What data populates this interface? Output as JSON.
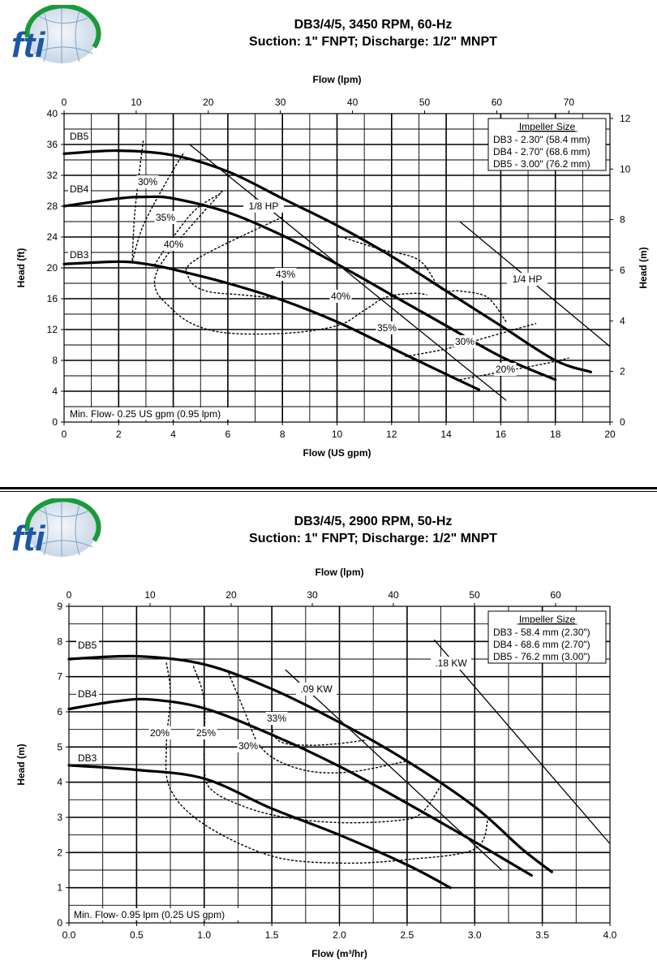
{
  "charts": [
    {
      "logo_text": "fti",
      "title_line1": "DB3/4/5, 3450 RPM, 60-Hz",
      "title_line2": "Suction: 1\" FNPT; Discharge: 1/2\" MNPT",
      "chart_data": {
        "type": "line",
        "xlabel": "Flow (US gpm)",
        "x2label": "Flow (lpm)",
        "ylabel": "Head (ft)",
        "y2label": "Head (m)",
        "xlim": [
          0,
          20
        ],
        "x_ticks": [
          "0",
          "2",
          "4",
          "6",
          "8",
          "10",
          "12",
          "14",
          "16",
          "18",
          "20"
        ],
        "x2lim": [
          0,
          75.7
        ],
        "x2_ticks": [
          "0",
          "10",
          "20",
          "30",
          "40",
          "50",
          "60",
          "70"
        ],
        "ylim": [
          0,
          40
        ],
        "y_ticks": [
          "0",
          "4",
          "8",
          "12",
          "16",
          "20",
          "24",
          "28",
          "32",
          "36",
          "40"
        ],
        "y2lim": [
          0,
          12.19
        ],
        "y2_ticks": [
          "0",
          "2",
          "4",
          "6",
          "8",
          "10",
          "12"
        ],
        "grid": true,
        "legend_position": "top-right",
        "legend_title": "Impeller Size",
        "legend_entries": [
          "DB3 - 2.30\" (58.4 mm)",
          "DB4 - 2.70\" (68.6 mm)",
          "DB5 - 3.00\" (76.2 mm)"
        ],
        "series": [
          {
            "name": "DB5",
            "x": [
              0,
              2,
              4,
              6,
              8,
              10,
              12,
              14,
              16,
              18,
              19.3
            ],
            "y": [
              34.8,
              35.2,
              34.6,
              32.5,
              29.0,
              25.5,
              21.5,
              17.0,
              12.5,
              8.0,
              6.5
            ]
          },
          {
            "name": "DB4",
            "x": [
              0,
              2,
              3,
              4,
              6,
              8,
              10,
              12,
              14,
              16,
              18
            ],
            "y": [
              28.0,
              29.0,
              29.2,
              29.0,
              27.2,
              24.2,
              20.5,
              16.5,
              12.5,
              8.5,
              5.5
            ]
          },
          {
            "name": "DB3",
            "x": [
              0,
              2,
              3,
              4,
              6,
              8,
              10,
              12,
              14,
              15.2
            ],
            "y": [
              20.5,
              20.8,
              20.5,
              19.8,
              18.0,
              15.8,
              13.0,
              9.6,
              6.2,
              4.2
            ]
          }
        ],
        "power_lines": [
          {
            "label": "1/8 HP",
            "x": [
              4.6,
              16.2
            ],
            "y": [
              36.0,
              2.8
            ]
          },
          {
            "label": "1/4 HP",
            "x": [
              14.5,
              20
            ],
            "y": [
              26.0,
              9.8
            ]
          }
        ],
        "efficiency_curves": [
          {
            "label": "30%",
            "x": [
              2.5,
              2.6,
              2.9
            ],
            "y": [
              21.0,
              27.5,
              36.5
            ]
          },
          {
            "label": "35%",
            "x": [
              2.5,
              2.9,
              3.8,
              4.4
            ],
            "y": [
              20.8,
              25.5,
              31.5,
              35.0
            ]
          },
          {
            "label": "40%",
            "x": [
              3.3,
              3.9,
              4.8,
              5.8
            ],
            "y": [
              20.3,
              23.5,
              27.5,
              29.8
            ]
          },
          {
            "label": "43%",
            "x": [
              8.0,
              4.8,
              4.6,
              5.2,
              6.5,
              8.0
            ],
            "y": [
              26.6,
              21.0,
              18.5,
              17.0,
              16.5,
              16.0
            ]
          },
          {
            "label": "40%",
            "x": [
              5.8,
              3.4,
              4.0,
              5.5,
              8.0,
              10.0,
              11.0,
              11.8,
              12.8,
              13.3
            ],
            "y": [
              30.0,
              19.5,
              14.5,
              11.8,
              11.5,
              12.5,
              14.5,
              16.2,
              16.7,
              16.5
            ]
          },
          {
            "label": "35%",
            "x": [
              10.0,
              11.5,
              13.0,
              13.8,
              14.5,
              15.5,
              16.2
            ],
            "y": [
              24.2,
              22.5,
              21.0,
              17.3,
              17.0,
              16.2,
              13.0
            ]
          },
          {
            "label": "30%",
            "x": [
              12.5,
              14.0,
              15.5,
              16.5,
              17.3
            ],
            "y": [
              8.5,
              9.5,
              11.0,
              12.0,
              12.8
            ]
          },
          {
            "label": "20%",
            "x": [
              14.5,
              16.0,
              17.5,
              18.5
            ],
            "y": [
              5.5,
              6.5,
              7.5,
              8.3
            ]
          }
        ],
        "annotations": [
          "Min. Flow- 0.25 US gpm (0.95 lpm)"
        ]
      }
    },
    {
      "logo_text": "fti",
      "title_line1": "DB3/4/5, 2900 RPM, 50-Hz",
      "title_line2": "Suction: 1\" FNPT; Discharge: 1/2\" MNPT",
      "chart_data": {
        "type": "line",
        "xlabel": "Flow (m³/hr)",
        "x2label": "Flow (lpm)",
        "ylabel": "Head (m)",
        "y2label": "",
        "xlim": [
          0,
          4.0
        ],
        "x_ticks": [
          "0.0",
          "0.5",
          "1.0",
          "1.5",
          "2.0",
          "2.5",
          "3.0",
          "3.5",
          "4.0"
        ],
        "x2lim": [
          0,
          66.7
        ],
        "x2_ticks": [
          "0",
          "10",
          "20",
          "30",
          "40",
          "50",
          "60"
        ],
        "ylim": [
          0,
          9
        ],
        "y_ticks": [
          "0",
          "1",
          "2",
          "3",
          "4",
          "5",
          "6",
          "7",
          "8",
          "9"
        ],
        "grid": true,
        "legend_position": "top-right",
        "legend_title": "Impeller Size",
        "legend_entries": [
          "DB3 - 58.4 mm (2.30\")",
          "DB4 - 68.6 mm (2.70\")",
          "DB5 - 76.2 mm (3.00\")"
        ],
        "series": [
          {
            "name": "DB5",
            "x": [
              0,
              0.5,
              1.0,
              1.5,
              2.0,
              2.5,
              3.0,
              3.35,
              3.57
            ],
            "y": [
              7.5,
              7.58,
              7.35,
              6.65,
              5.7,
              4.6,
              3.3,
              2.1,
              1.45
            ]
          },
          {
            "name": "DB4",
            "x": [
              0,
              0.35,
              0.6,
              1.0,
              1.5,
              2.0,
              2.5,
              3.0,
              3.42
            ],
            "y": [
              6.08,
              6.3,
              6.35,
              6.1,
              5.35,
              4.45,
              3.4,
              2.3,
              1.35
            ]
          },
          {
            "name": "DB3",
            "x": [
              0,
              0.5,
              1.0,
              1.5,
              2.0,
              2.5,
              2.82
            ],
            "y": [
              4.48,
              4.35,
              4.1,
              3.25,
              2.5,
              1.65,
              1.0
            ]
          }
        ],
        "power_lines": [
          {
            "label": ".09 KW",
            "x": [
              1.6,
              3.2
            ],
            "y": [
              7.2,
              1.5
            ]
          },
          {
            "label": ".18 KW",
            "x": [
              2.7,
              4.0
            ],
            "y": [
              8.05,
              2.25
            ]
          }
        ],
        "efficiency_curves": [
          {
            "label": "20%",
            "x": [
              0.72,
              0.75,
              0.72,
              0.75,
              1.0,
              1.5,
              2.0,
              2.5,
              3.0,
              3.1
            ],
            "y": [
              7.4,
              6.5,
              5.0,
              3.8,
              2.8,
              1.9,
              1.7,
              1.8,
              2.1,
              3.0
            ]
          },
          {
            "label": "25%",
            "x": [
              0.92,
              1.0,
              1.0,
              1.05,
              1.3,
              1.6,
              2.0,
              2.4,
              2.6,
              2.75
            ],
            "y": [
              7.3,
              6.3,
              4.5,
              3.8,
              3.3,
              3.0,
              2.85,
              2.9,
              3.1,
              3.9
            ]
          },
          {
            "label": "30%",
            "x": [
              1.18,
              1.3,
              1.4,
              1.55,
              1.8,
              2.1,
              2.5
            ],
            "y": [
              7.1,
              6.0,
              5.1,
              4.6,
              4.3,
              4.3,
              4.6
            ]
          },
          {
            "label": "33%",
            "x": [
              1.5,
              1.52,
              1.6,
              1.8,
              2.0,
              2.2
            ],
            "y": [
              5.6,
              5.3,
              5.1,
              5.05,
              5.1,
              5.2
            ]
          }
        ],
        "annotations": [
          "Min. Flow- 0.95 lpm (0.25 US gpm)"
        ]
      }
    }
  ]
}
